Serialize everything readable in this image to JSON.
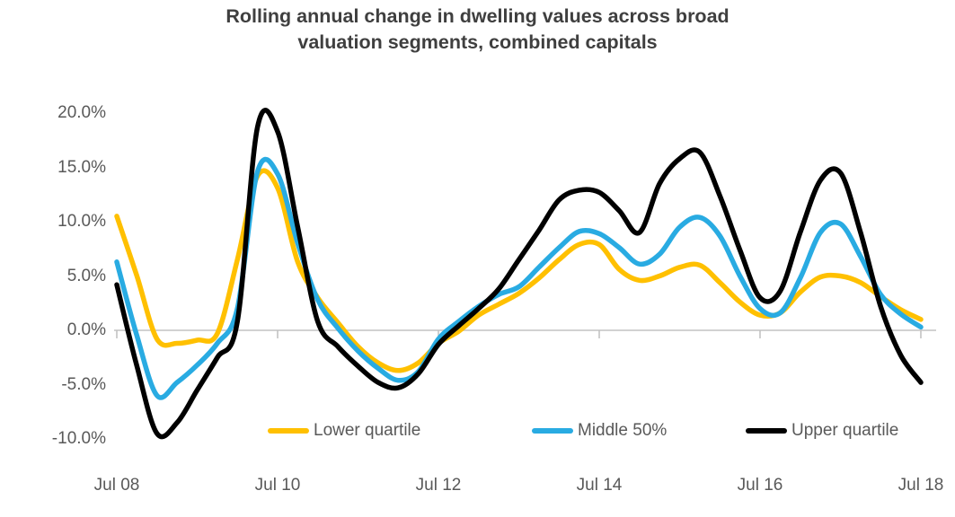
{
  "title": {
    "lines": [
      "Rolling annual change in dwelling values across broad",
      "valuation segments, combined capitals"
    ]
  },
  "chart_data": {
    "type": "line",
    "title": "Rolling annual change in dwelling values across broad valuation segments, combined capitals",
    "x_axis": {
      "unit": "months since Jul 2008",
      "tick_labels": [
        "Jul 08",
        "Jul 10",
        "Jul 12",
        "Jul 14",
        "Jul 16",
        "Jul 18"
      ],
      "tick_months": [
        0,
        24,
        48,
        72,
        96,
        120
      ]
    },
    "y_axis": {
      "tick_labels": [
        "20.0%",
        "15.0%",
        "10.0%",
        "5.0%",
        "0.0%",
        "-5.0%",
        "-10.0%"
      ],
      "tick_values": [
        20,
        15,
        10,
        5,
        0,
        -5,
        -10
      ],
      "ylim": [
        -10,
        20
      ],
      "unit": "percent"
    },
    "grid": "zero-baseline-only",
    "legend_position": "bottom-inside",
    "x_months": [
      0,
      3,
      6,
      9,
      12,
      15,
      18,
      21,
      24,
      27,
      30,
      33,
      36,
      39,
      42,
      45,
      48,
      51,
      54,
      57,
      60,
      63,
      66,
      69,
      72,
      75,
      78,
      81,
      84,
      87,
      90,
      93,
      96,
      99,
      102,
      105,
      108,
      111,
      114,
      117,
      120
    ],
    "series": [
      {
        "name": "Lower quartile",
        "color": "#FFC000",
        "values": [
          10.5,
          5.0,
          -0.8,
          -1.2,
          -0.9,
          -0.3,
          6.5,
          14.2,
          13.1,
          6.3,
          3.0,
          0.7,
          -1.5,
          -3.0,
          -3.7,
          -3.0,
          -1.2,
          -0.1,
          1.4,
          2.4,
          3.4,
          4.8,
          6.5,
          7.9,
          7.9,
          5.6,
          4.6,
          5.0,
          5.8,
          6.0,
          4.4,
          2.6,
          1.4,
          1.6,
          3.5,
          4.9,
          5.0,
          4.4,
          3.1,
          1.9,
          1.0
        ]
      },
      {
        "name": "Middle 50%",
        "color": "#29ABE2",
        "values": [
          6.3,
          -0.5,
          -6.0,
          -4.8,
          -3.2,
          -1.2,
          2.0,
          14.6,
          14.4,
          8.0,
          2.8,
          0.2,
          -1.9,
          -3.5,
          -4.6,
          -3.8,
          -0.8,
          0.8,
          2.2,
          3.3,
          4.0,
          5.8,
          7.6,
          9.1,
          8.9,
          7.6,
          6.1,
          7.0,
          9.5,
          10.4,
          8.7,
          5.0,
          2.0,
          1.6,
          4.8,
          9.0,
          9.8,
          6.8,
          3.3,
          1.5,
          0.3
        ]
      },
      {
        "name": "Upper quartile",
        "color": "#000000",
        "values": [
          4.2,
          -3.3,
          -9.5,
          -8.5,
          -5.5,
          -2.5,
          0.8,
          18.7,
          18.3,
          9.5,
          0.8,
          -1.5,
          -3.3,
          -4.8,
          -5.3,
          -4.0,
          -1.3,
          0.4,
          2.0,
          3.8,
          6.5,
          9.2,
          12.0,
          12.9,
          12.7,
          11.0,
          9.0,
          13.5,
          15.8,
          16.4,
          12.4,
          7.4,
          3.0,
          3.6,
          9.0,
          13.8,
          14.5,
          9.0,
          2.2,
          -2.3,
          -4.8
        ]
      }
    ],
    "colors": {
      "baseline": "#D2D2D2",
      "tick": "#BFBFBF",
      "axis_label": "#595959",
      "title": "#3F3F3F",
      "background": "#FFFFFF"
    }
  }
}
